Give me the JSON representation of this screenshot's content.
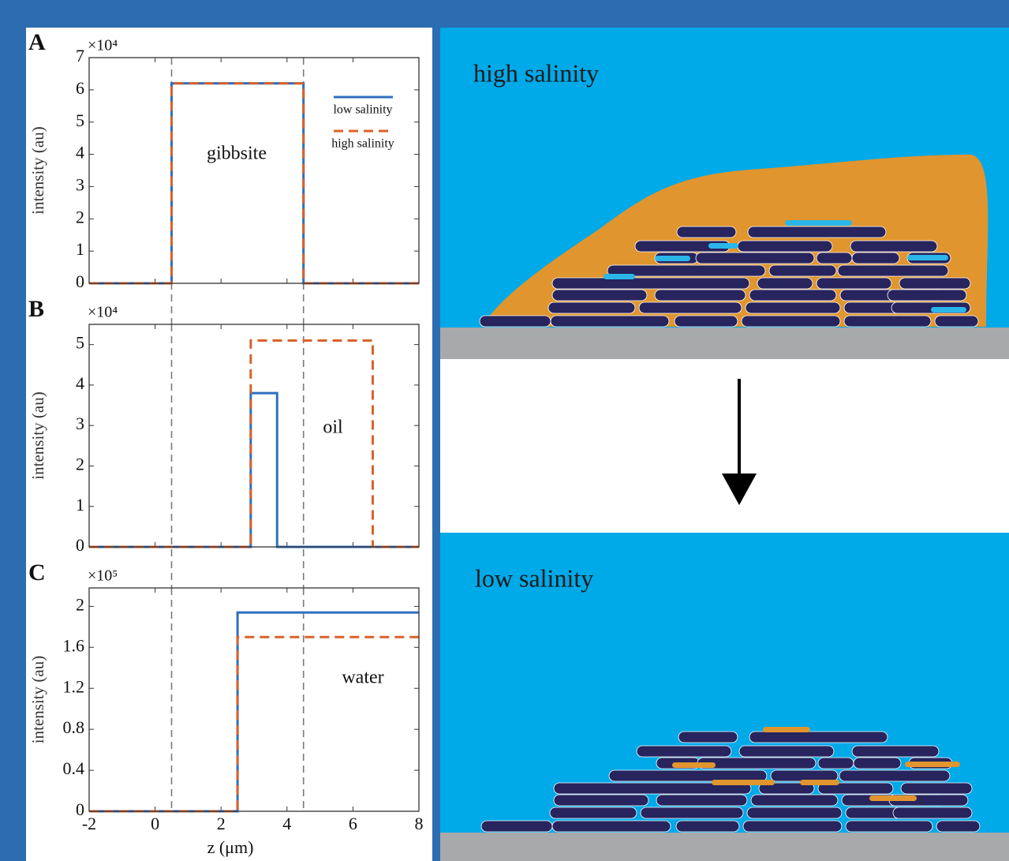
{
  "chart_data": [
    {
      "type": "line",
      "panel_label": "A",
      "y_multiplier": "×10⁴",
      "ylabel": "intensity (au)",
      "annotation": "gibbsite",
      "xlim": [
        -2,
        8
      ],
      "xticks": [
        -2,
        0,
        2,
        4,
        6,
        8
      ],
      "show_xtick_labels": false,
      "ylim": [
        0,
        7
      ],
      "yticks": [
        0,
        1,
        2,
        3,
        4,
        5,
        6,
        7
      ],
      "grid": false,
      "legend": "upper right",
      "vlines": [
        0.5,
        4.5
      ],
      "series": [
        {
          "name": "low salinity",
          "color": "#2f6fbf",
          "dashed": false,
          "x": [
            -2,
            0.5,
            0.5,
            4.5,
            4.5,
            8
          ],
          "values": [
            0,
            0,
            6.2,
            6.2,
            0,
            0
          ]
        },
        {
          "name": "high salinity",
          "color": "#d9622b",
          "dashed": true,
          "x": [
            -2,
            0.5,
            0.5,
            4.5,
            4.5,
            8
          ],
          "values": [
            0,
            0,
            6.2,
            6.2,
            0,
            0
          ]
        }
      ]
    },
    {
      "type": "line",
      "panel_label": "B",
      "y_multiplier": "×10⁴",
      "ylabel": "intensity (au)",
      "annotation": "oil",
      "xlim": [
        -2,
        8
      ],
      "xticks": [
        -2,
        0,
        2,
        4,
        6,
        8
      ],
      "show_xtick_labels": false,
      "ylim": [
        0,
        5.5
      ],
      "yticks": [
        0,
        1,
        2,
        3,
        4,
        5
      ],
      "grid": false,
      "vlines": [
        0.5,
        4.5
      ],
      "series": [
        {
          "color": "#2f6fbf",
          "dashed": false,
          "x": [
            -2,
            2.9,
            2.9,
            3.7,
            3.7,
            8
          ],
          "values": [
            0,
            0,
            3.8,
            3.8,
            0,
            0
          ]
        },
        {
          "color": "#d9622b",
          "dashed": true,
          "x": [
            -2,
            2.9,
            2.9,
            6.6,
            6.6,
            8
          ],
          "values": [
            0,
            0,
            5.1,
            5.1,
            0,
            0
          ]
        }
      ]
    },
    {
      "type": "line",
      "panel_label": "C",
      "y_multiplier": "×10⁵",
      "ylabel": "intensity (au)",
      "xlabel": "z (μm)",
      "annotation": "water",
      "xlim": [
        -2,
        8
      ],
      "xticks": [
        -2,
        0,
        2,
        4,
        6,
        8
      ],
      "show_xtick_labels": true,
      "ylim": [
        0,
        2.18
      ],
      "yticks": [
        0,
        0.4,
        0.8,
        1.2,
        1.6,
        2
      ],
      "grid": false,
      "vlines": [
        0.5,
        4.5
      ],
      "series": [
        {
          "color": "#2f6fbf",
          "dashed": false,
          "x": [
            -2,
            2.5,
            2.5,
            8
          ],
          "values": [
            0,
            0,
            1.94,
            1.94
          ]
        },
        {
          "color": "#d9622b",
          "dashed": true,
          "x": [
            -2,
            2.5,
            2.5,
            8
          ],
          "values": [
            0,
            0,
            1.7,
            1.7
          ]
        }
      ]
    }
  ],
  "schematic": {
    "top_label": "high salinity",
    "bottom_label": "low salinity"
  }
}
